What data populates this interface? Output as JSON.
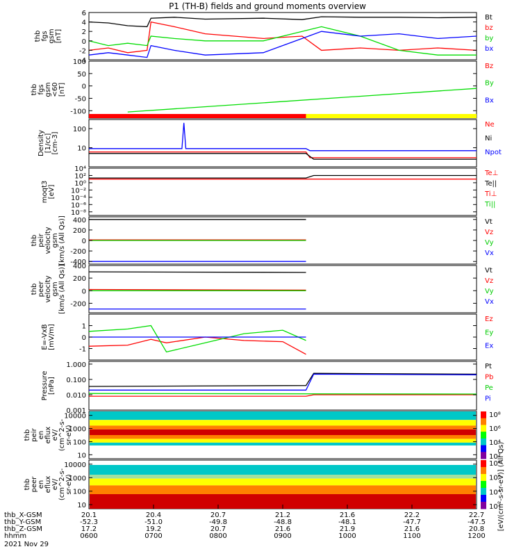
{
  "title": "P1 (TH-B) fields and ground moments overview",
  "colors": {
    "black": "#000000",
    "red": "#ff0000",
    "green": "#00dd00",
    "blue": "#0000ff",
    "yellow": "#ffff00"
  },
  "chart_data": [
    {
      "type": "line",
      "ylabel": [
        "thb",
        "fgs",
        "gsm",
        "[nT]"
      ],
      "ylim": [
        -4,
        6
      ],
      "yticks": [
        "6",
        "4",
        "2",
        "0",
        "-2",
        "-4"
      ],
      "ytick_values": [
        6,
        4,
        2,
        0,
        -2,
        -4
      ],
      "series": [
        {
          "name": "Bt",
          "color": "#000000",
          "x": [
            0,
            0.05,
            0.1,
            0.15,
            0.16,
            0.22,
            0.3,
            0.45,
            0.55,
            0.6,
            0.7,
            0.8,
            0.9,
            1.0
          ],
          "y": [
            4.0,
            3.8,
            3.2,
            3.0,
            4.8,
            5.0,
            4.6,
            4.8,
            4.5,
            5.1,
            5.0,
            5.0,
            4.9,
            5.0
          ]
        },
        {
          "name": "bz",
          "color": "#ff0000",
          "x": [
            0,
            0.05,
            0.1,
            0.15,
            0.16,
            0.22,
            0.3,
            0.45,
            0.55,
            0.6,
            0.7,
            0.8,
            0.9,
            1.0
          ],
          "y": [
            -2,
            -1.5,
            -2.5,
            -2.0,
            4.0,
            3.0,
            1.5,
            0.5,
            1.0,
            -2.0,
            -1.5,
            -2.0,
            -1.5,
            -2.0
          ]
        },
        {
          "name": "by",
          "color": "#00dd00",
          "x": [
            0,
            0.05,
            0.1,
            0.15,
            0.16,
            0.22,
            0.3,
            0.45,
            0.55,
            0.6,
            0.7,
            0.8,
            0.9,
            1.0
          ],
          "y": [
            0,
            -1.0,
            -0.5,
            -1.0,
            1.0,
            0.5,
            0.0,
            0.0,
            2.0,
            3.0,
            1.0,
            -2.0,
            -3.0,
            -3.0
          ]
        },
        {
          "name": "bx",
          "color": "#0000ff",
          "x": [
            0,
            0.05,
            0.1,
            0.15,
            0.16,
            0.22,
            0.3,
            0.45,
            0.55,
            0.6,
            0.7,
            0.8,
            0.9,
            1.0
          ],
          "y": [
            -3,
            -2.5,
            -3.0,
            -3.5,
            -1.0,
            -2.0,
            -3.0,
            -2.5,
            0.5,
            2.0,
            1.0,
            1.5,
            0.5,
            1.0
          ]
        }
      ]
    },
    {
      "type": "line",
      "ylabel": [
        "thb",
        "fgs",
        "gsm",
        "<60",
        "[nT]"
      ],
      "ylim": [
        -130,
        100
      ],
      "yticks": [
        "100",
        "50",
        "0",
        "-50",
        "-100"
      ],
      "ytick_values": [
        100,
        50,
        0,
        -50,
        -100
      ],
      "series": [
        {
          "name": "Bz",
          "color": "#ff0000",
          "x": [],
          "y": []
        },
        {
          "name": "By",
          "color": "#00dd00",
          "x": [
            0.1,
            1.0
          ],
          "y": [
            -105,
            -10
          ]
        },
        {
          "name": "Bx",
          "color": "#0000ff",
          "x": [],
          "y": []
        }
      ],
      "mode_bar": [
        {
          "from": 0,
          "to": 0.56,
          "color": "#ff0000"
        },
        {
          "from": 0.56,
          "to": 1.0,
          "color": "#ffff00"
        }
      ]
    },
    {
      "type": "line",
      "ylabel": [
        "Density",
        "[1/cc]",
        "[cm-3]"
      ],
      "scale": "log",
      "ylim": [
        1,
        300
      ],
      "yticks": [
        "100",
        "10"
      ],
      "ytick_values": [
        100,
        10
      ],
      "series": [
        {
          "name": "Ne",
          "color": "#ff0000",
          "x": [
            0,
            0.56,
            0.57,
            1.0
          ],
          "y": [
            6,
            6,
            3,
            3
          ]
        },
        {
          "name": "Ni",
          "color": "#000000",
          "x": [
            0,
            0.56,
            0.58,
            1.0
          ],
          "y": [
            5,
            5,
            2.5,
            2.5
          ]
        },
        {
          "name": "Npot",
          "color": "#0000ff",
          "x": [
            0,
            0.24,
            0.245,
            0.25,
            0.56,
            0.57,
            1.0
          ],
          "y": [
            9,
            9,
            200,
            9,
            9,
            7,
            7
          ]
        }
      ]
    },
    {
      "type": "line",
      "ylabel": [
        "moqt3",
        "[eV]"
      ],
      "scale": "log",
      "ylim": [
        1e-09,
        10000.0
      ],
      "yticks": [
        "10⁴",
        "10²",
        "10⁰",
        "10⁻²",
        "10⁻⁴",
        "10⁻⁶",
        "10⁻⁸"
      ],
      "ytick_values": [
        10000,
        100,
        1,
        0.01,
        0.0001,
        1e-06,
        1e-08
      ],
      "series": [
        {
          "name": "Te⊥",
          "color": "#ff0000",
          "x": [
            0,
            1.0
          ],
          "y": [
            10,
            10
          ]
        },
        {
          "name": "Te||",
          "color": "#000000",
          "x": [
            0,
            0.56,
            0.58,
            1.0
          ],
          "y": [
            20,
            20,
            100,
            100
          ]
        },
        {
          "name": "Ti⊥",
          "color": "#ff0000",
          "x": [],
          "y": []
        },
        {
          "name": "Ti||",
          "color": "#00dd00",
          "x": [],
          "y": []
        }
      ]
    },
    {
      "type": "line",
      "ylabel": [
        "thb",
        "peir",
        "velocity",
        "gsm",
        "[km/s (All Qs)]"
      ],
      "ylim": [
        -450,
        450
      ],
      "yticks": [
        "400",
        "200",
        "0",
        "-200",
        "-400"
      ],
      "ytick_values": [
        400,
        200,
        0,
        -200,
        -400
      ],
      "series": [
        {
          "name": "Vt",
          "color": "#000000",
          "x": [
            0,
            0.56
          ],
          "y": [
            400,
            400
          ]
        },
        {
          "name": "Vz",
          "color": "#ff0000",
          "x": [
            0,
            0.56
          ],
          "y": [
            10,
            10
          ]
        },
        {
          "name": "Vy",
          "color": "#00dd00",
          "x": [
            0,
            0.56
          ],
          "y": [
            0,
            0
          ]
        },
        {
          "name": "Vx",
          "color": "#0000ff",
          "x": [
            0,
            0.56
          ],
          "y": [
            -400,
            -400
          ]
        }
      ]
    },
    {
      "type": "line",
      "ylabel": [
        "thb",
        "peer",
        "velocity",
        "gsm",
        "[km/s (All Qs)]"
      ],
      "ylim": [
        -350,
        400
      ],
      "yticks": [
        "400",
        "200",
        "0",
        "-200"
      ],
      "ytick_values": [
        400,
        200,
        0,
        -200
      ],
      "series": [
        {
          "name": "Vt",
          "color": "#000000",
          "x": [
            0,
            0.56
          ],
          "y": [
            300,
            290
          ]
        },
        {
          "name": "Vz",
          "color": "#ff0000",
          "x": [
            0,
            0.56
          ],
          "y": [
            20,
            10
          ]
        },
        {
          "name": "Vy",
          "color": "#00dd00",
          "x": [
            0,
            0.56
          ],
          "y": [
            0,
            0
          ]
        },
        {
          "name": "Vx",
          "color": "#0000ff",
          "x": [
            0,
            0.56
          ],
          "y": [
            -290,
            -290
          ]
        }
      ]
    },
    {
      "type": "line",
      "ylabel": [
        "E=-VxB",
        "[mV/m]"
      ],
      "ylim": [
        -2,
        2
      ],
      "yticks": [
        "1",
        "0",
        "-1"
      ],
      "ytick_values": [
        1,
        0,
        -1
      ],
      "series": [
        {
          "name": "Ez",
          "color": "#ff0000",
          "x": [
            0,
            0.1,
            0.16,
            0.2,
            0.3,
            0.4,
            0.5,
            0.56
          ],
          "y": [
            -0.8,
            -0.7,
            -0.2,
            -0.5,
            0.0,
            -0.3,
            -0.4,
            -1.5
          ]
        },
        {
          "name": "Ey",
          "color": "#00dd00",
          "x": [
            0,
            0.1,
            0.16,
            0.2,
            0.3,
            0.4,
            0.5,
            0.56
          ],
          "y": [
            0.5,
            0.7,
            1.0,
            -1.3,
            -0.5,
            0.3,
            0.6,
            -0.3
          ]
        },
        {
          "name": "Ex",
          "color": "#0000ff",
          "x": [
            0,
            0.56
          ],
          "y": [
            0.0,
            0.0
          ]
        }
      ]
    },
    {
      "type": "line",
      "ylabel": [
        "Pressure",
        "[nPa]"
      ],
      "scale": "log",
      "ylim": [
        0.001,
        1.5
      ],
      "yticks": [
        "1.000",
        "0.100",
        "0.010",
        "0.001"
      ],
      "ytick_values": [
        1,
        0.1,
        0.01,
        0.001
      ],
      "series": [
        {
          "name": "Pt",
          "color": "#000000",
          "x": [
            0,
            0.56,
            0.58,
            1.0
          ],
          "y": [
            0.035,
            0.04,
            0.25,
            0.22
          ]
        },
        {
          "name": "Pb",
          "color": "#ff0000",
          "x": [
            0,
            0.56,
            0.58,
            1.0
          ],
          "y": [
            0.008,
            0.008,
            0.01,
            0.01
          ]
        },
        {
          "name": "Pe",
          "color": "#00dd00",
          "x": [
            0,
            1.0
          ],
          "y": [
            0.012,
            0.011
          ]
        },
        {
          "name": "Pi",
          "color": "#0000ff",
          "x": [
            0,
            0.56,
            0.58,
            1.0
          ],
          "y": [
            0.02,
            0.02,
            0.22,
            0.2
          ]
        }
      ]
    },
    {
      "type": "heatmap",
      "ylabel": [
        "thb",
        "peir",
        "en",
        "eflux",
        "eV/",
        "(cm^2-s-",
        "sr-eV)"
      ],
      "scale": "log",
      "ylim": [
        5,
        20000
      ],
      "yticks": [
        "10000",
        "1000",
        "100",
        "10"
      ],
      "ytick_values": [
        10000,
        1000,
        100,
        10
      ],
      "colorbar": {
        "labels": [
          "10⁸",
          "10⁶",
          "10⁴",
          "10²"
        ]
      }
    },
    {
      "type": "heatmap",
      "ylabel": [
        "thb",
        "peer",
        "en",
        "eflux",
        "eV/",
        "(cm^2-s-",
        "sr-eV)"
      ],
      "scale": "log",
      "ylim": [
        5,
        20000
      ],
      "yticks": [
        "10000",
        "1000",
        "100",
        "10"
      ],
      "ytick_values": [
        10000,
        1000,
        100,
        10
      ],
      "colorbar": {
        "labels": [
          "10⁸",
          "10⁶",
          "10⁴",
          "10²"
        ]
      },
      "colorbar_title": "[eV/(cm²-s-sr-eV)] (All Qs)"
    }
  ],
  "xaxis": {
    "rows": [
      {
        "label": "thb_X-GSM",
        "values": [
          "20.1",
          "20.4",
          "20.7",
          "21.2",
          "21.6",
          "22.2",
          "22.7"
        ]
      },
      {
        "label": "thb_Y-GSM",
        "values": [
          "-52.3",
          "-51.0",
          "-49.8",
          "-48.8",
          "-48.1",
          "-47.7",
          "-47.5"
        ]
      },
      {
        "label": "thb_Z-GSM",
        "values": [
          "17.2",
          "19.2",
          "20.7",
          "21.6",
          "21.9",
          "21.6",
          "20.8"
        ]
      },
      {
        "label": "hhmm",
        "values": [
          "0600",
          "0700",
          "0800",
          "0900",
          "1000",
          "1100",
          "1200"
        ]
      }
    ],
    "date": "2021 Nov 29"
  }
}
